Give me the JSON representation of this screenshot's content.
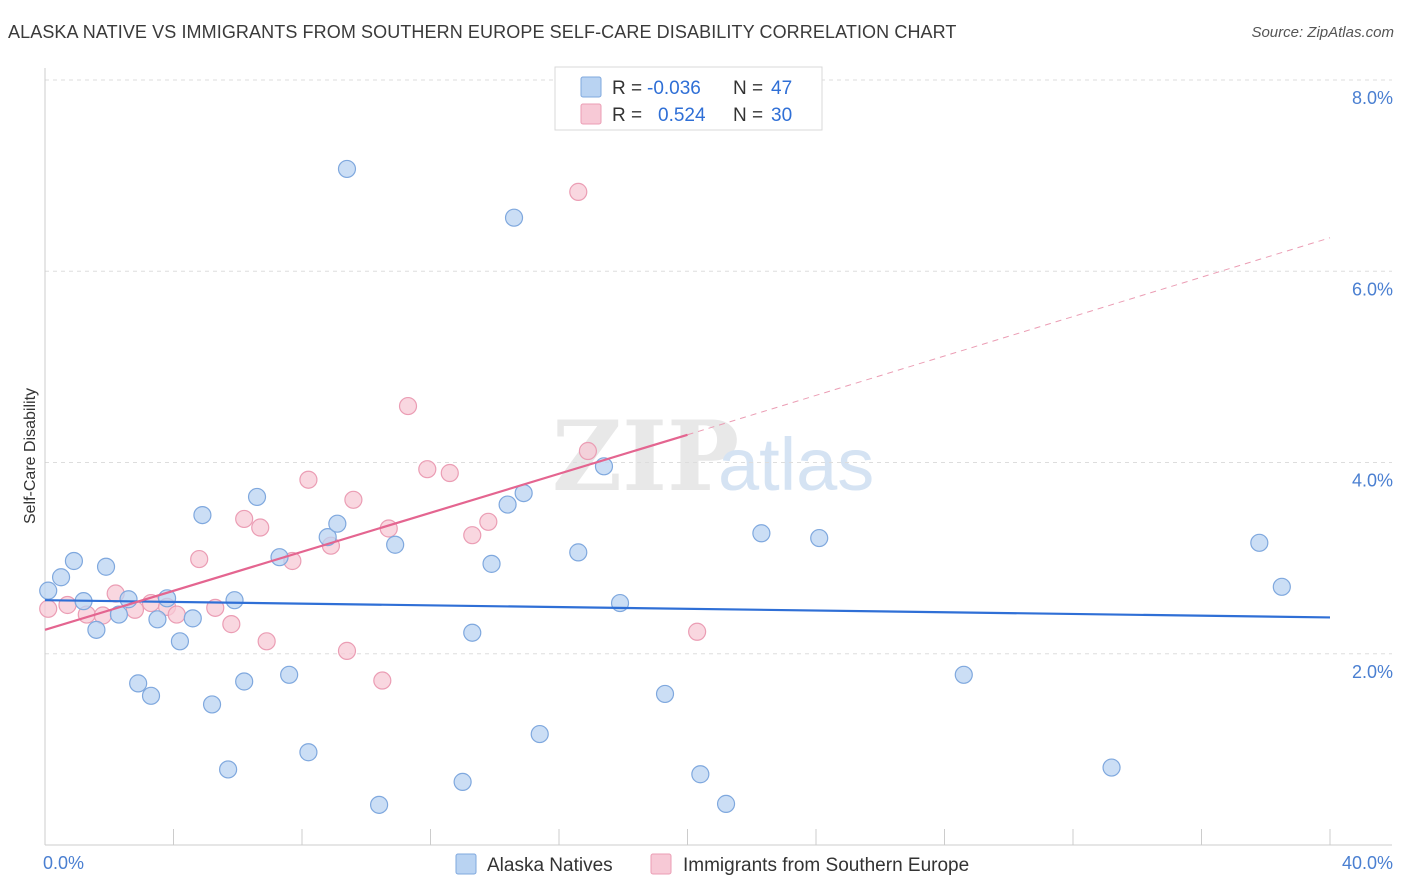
{
  "title": "ALASKA NATIVE VS IMMIGRANTS FROM SOUTHERN EUROPE SELF-CARE DISABILITY CORRELATION CHART",
  "source": "Source: ZipAtlas.com",
  "watermark": {
    "left": "ZIP",
    "right": "atlas"
  },
  "colors": {
    "blue_fill": "#b9d3f2",
    "blue_stroke": "#7fa8de",
    "blue_line": "#2f6fd6",
    "pink_fill": "#f7c9d6",
    "pink_stroke": "#eb9db4",
    "pink_line": "#e46590",
    "axis_text": "#4a7fd1",
    "grid": "#dddddd"
  },
  "legend": {
    "rows": [
      {
        "r_label": "R =",
        "r_value": "-0.036",
        "n_label": "N =",
        "n_value": "47"
      },
      {
        "r_label": "R =",
        "r_value": "0.524",
        "n_label": "N =",
        "n_value": "30"
      }
    ]
  },
  "chart_data": {
    "type": "scatter",
    "title": "ALASKA NATIVE VS IMMIGRANTS FROM SOUTHERN EUROPE SELF-CARE DISABILITY CORRELATION CHART",
    "xlabel": "",
    "ylabel": "Self-Care Disability",
    "xlim": [
      0,
      40
    ],
    "ylim": [
      0,
      8
    ],
    "x_ticks": [
      "0.0%",
      "40.0%"
    ],
    "y_ticks": [
      {
        "value": 2,
        "label": "2.0%"
      },
      {
        "value": 4,
        "label": "4.0%"
      },
      {
        "value": 6,
        "label": "6.0%"
      },
      {
        "value": 8,
        "label": "8.0%"
      }
    ],
    "grid": true,
    "legend_position": "bottom",
    "series": [
      {
        "name": "Alaska Natives",
        "color": "#b9d3f2",
        "r": -0.036,
        "n": 47,
        "trend": {
          "x": [
            0,
            40
          ],
          "y": [
            2.56,
            2.38
          ],
          "dashed_extension": false
        },
        "points": [
          [
            0.1,
            2.66
          ],
          [
            0.5,
            2.8
          ],
          [
            0.9,
            2.97
          ],
          [
            1.2,
            2.55
          ],
          [
            1.6,
            2.25
          ],
          [
            1.9,
            2.91
          ],
          [
            2.3,
            2.41
          ],
          [
            2.6,
            2.57
          ],
          [
            2.9,
            1.69
          ],
          [
            3.3,
            1.56
          ],
          [
            3.5,
            2.36
          ],
          [
            3.8,
            2.58
          ],
          [
            4.2,
            2.13
          ],
          [
            4.6,
            2.37
          ],
          [
            4.9,
            3.45
          ],
          [
            5.2,
            1.47
          ],
          [
            5.7,
            0.79
          ],
          [
            5.9,
            2.56
          ],
          [
            6.2,
            1.71
          ],
          [
            6.6,
            3.64
          ],
          [
            7.3,
            3.01
          ],
          [
            7.6,
            1.78
          ],
          [
            8.2,
            0.97
          ],
          [
            8.8,
            3.22
          ],
          [
            9.1,
            3.36
          ],
          [
            9.4,
            7.07
          ],
          [
            10.4,
            0.42
          ],
          [
            10.9,
            3.14
          ],
          [
            13.0,
            0.66
          ],
          [
            13.3,
            2.22
          ],
          [
            13.9,
            2.94
          ],
          [
            14.4,
            3.56
          ],
          [
            14.6,
            6.56
          ],
          [
            14.9,
            3.68
          ],
          [
            15.4,
            1.16
          ],
          [
            16.6,
            3.06
          ],
          [
            17.4,
            3.96
          ],
          [
            17.9,
            2.53
          ],
          [
            19.3,
            1.58
          ],
          [
            20.4,
            0.74
          ],
          [
            21.2,
            0.43
          ],
          [
            22.3,
            3.26
          ],
          [
            24.1,
            3.21
          ],
          [
            28.6,
            1.78
          ],
          [
            33.2,
            0.81
          ],
          [
            37.8,
            3.16
          ],
          [
            38.5,
            2.7
          ]
        ]
      },
      {
        "name": "Immigrants from Southern Europe",
        "color": "#f7c9d6",
        "r": 0.524,
        "n": 30,
        "trend": {
          "x": [
            0,
            20
          ],
          "y": [
            2.25,
            4.29
          ],
          "dashed_extension": {
            "x": [
              20,
              40
            ],
            "y": [
              4.29,
              6.35
            ]
          }
        },
        "points": [
          [
            0.1,
            2.47
          ],
          [
            0.7,
            2.51
          ],
          [
            1.3,
            2.41
          ],
          [
            1.8,
            2.4
          ],
          [
            2.2,
            2.63
          ],
          [
            2.8,
            2.46
          ],
          [
            3.3,
            2.53
          ],
          [
            3.8,
            2.49
          ],
          [
            4.1,
            2.41
          ],
          [
            4.8,
            2.99
          ],
          [
            5.3,
            2.48
          ],
          [
            5.8,
            2.31
          ],
          [
            6.2,
            3.41
          ],
          [
            6.7,
            3.32
          ],
          [
            6.9,
            2.13
          ],
          [
            7.7,
            2.97
          ],
          [
            8.2,
            3.82
          ],
          [
            8.9,
            3.13
          ],
          [
            9.4,
            2.03
          ],
          [
            9.6,
            3.61
          ],
          [
            10.5,
            1.72
          ],
          [
            10.7,
            3.31
          ],
          [
            11.3,
            4.59
          ],
          [
            11.9,
            3.93
          ],
          [
            12.6,
            3.89
          ],
          [
            13.3,
            3.24
          ],
          [
            13.8,
            3.38
          ],
          [
            16.9,
            4.12
          ],
          [
            16.6,
            6.83
          ],
          [
            20.3,
            2.23
          ]
        ]
      }
    ]
  }
}
